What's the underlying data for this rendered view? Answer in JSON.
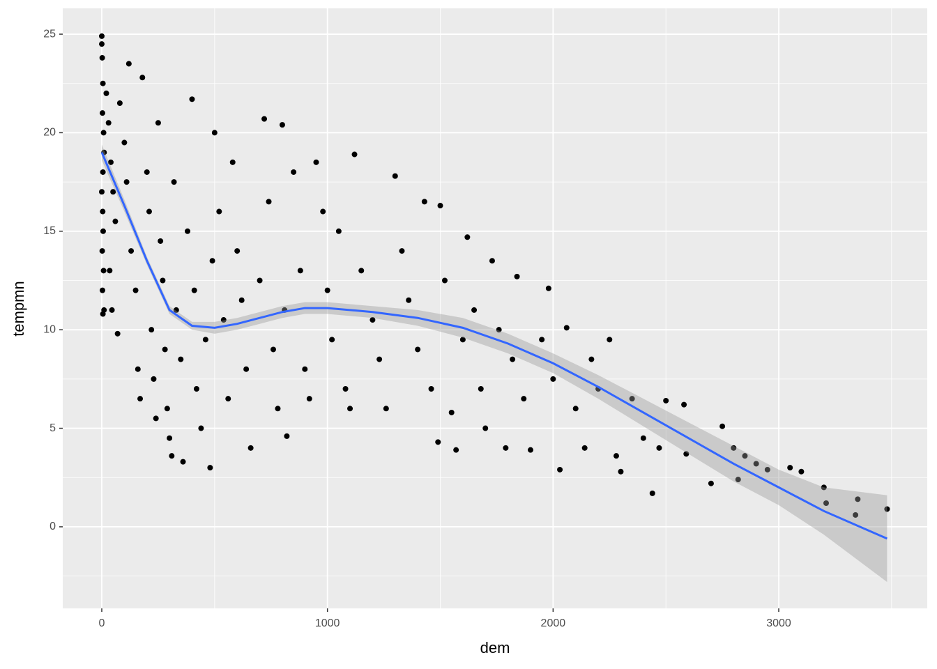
{
  "chart_data": {
    "type": "scatter",
    "x_label": "dem",
    "y_label": "tempmn",
    "xlim": [
      -173,
      3658
    ],
    "ylim": [
      -4.14,
      26.31
    ],
    "xticks": [
      0,
      1000,
      2000,
      3000
    ],
    "yticks": [
      0,
      5,
      10,
      15,
      20,
      25
    ],
    "minor_xticks": [
      500,
      1500,
      2500,
      3500
    ],
    "minor_yticks": [
      -2.5,
      2.5,
      7.5,
      12.5,
      17.5,
      22.5
    ],
    "grid": true,
    "panel_color": "#ebebeb",
    "grid_color": "#ffffff",
    "color": "#000000",
    "x": [
      0,
      0,
      2,
      5,
      3,
      8,
      10,
      5,
      0,
      4,
      6,
      2,
      8,
      3,
      10,
      5,
      20,
      30,
      40,
      50,
      60,
      35,
      45,
      70,
      80,
      100,
      110,
      120,
      130,
      150,
      160,
      170,
      180,
      200,
      210,
      220,
      230,
      240,
      250,
      260,
      270,
      280,
      290,
      300,
      310,
      320,
      330,
      350,
      360,
      380,
      400,
      410,
      420,
      440,
      460,
      480,
      490,
      500,
      520,
      540,
      560,
      580,
      600,
      620,
      640,
      660,
      700,
      720,
      740,
      760,
      780,
      800,
      810,
      820,
      850,
      880,
      900,
      920,
      950,
      980,
      1000,
      1020,
      1050,
      1080,
      1100,
      1120,
      1150,
      1200,
      1230,
      1260,
      1300,
      1330,
      1360,
      1400,
      1430,
      1460,
      1490,
      1500,
      1520,
      1550,
      1570,
      1600,
      1620,
      1650,
      1680,
      1700,
      1730,
      1760,
      1790,
      1820,
      1840,
      1870,
      1900,
      1950,
      1980,
      2000,
      2030,
      2060,
      2100,
      2140,
      2170,
      2200,
      2250,
      2280,
      2300,
      2350,
      2400,
      2440,
      2470,
      2500,
      2580,
      2590,
      2700,
      2750,
      2800,
      2820,
      2850,
      2900,
      2950,
      3050,
      3100,
      3200,
      3210,
      3350,
      3340,
      3480
    ],
    "values": [
      24.9,
      24.5,
      23.8,
      22.5,
      21,
      20,
      19,
      18,
      17,
      16,
      15,
      14,
      13,
      12,
      11,
      10.8,
      22,
      20.5,
      18.5,
      17,
      15.5,
      13,
      11,
      9.8,
      21.5,
      19.5,
      17.5,
      23.5,
      14,
      12,
      8,
      6.5,
      22.8,
      18,
      16,
      10,
      7.5,
      5.5,
      20.5,
      14.5,
      12.5,
      9,
      6,
      4.5,
      3.6,
      17.5,
      11,
      8.5,
      3.3,
      15,
      21.7,
      12,
      7,
      5,
      9.5,
      3,
      13.5,
      20,
      16,
      10.5,
      6.5,
      18.5,
      14,
      11.5,
      8,
      4,
      12.5,
      20.7,
      16.5,
      9,
      6,
      20.4,
      11,
      4.6,
      18,
      13,
      8,
      6.5,
      18.5,
      16,
      12,
      9.5,
      15,
      7,
      6,
      18.9,
      13,
      10.5,
      8.5,
      6,
      17.8,
      14,
      11.5,
      9,
      16.5,
      7,
      4.3,
      16.3,
      12.5,
      5.8,
      3.9,
      9.5,
      14.7,
      11,
      7,
      5,
      13.5,
      10,
      4,
      8.5,
      12.7,
      6.5,
      3.9,
      9.5,
      12.1,
      7.5,
      2.9,
      10.1,
      6,
      4,
      8.5,
      7,
      9.5,
      3.6,
      2.8,
      6.5,
      4.5,
      1.7,
      4,
      6.4,
      6.2,
      3.7,
      2.2,
      5.1,
      4,
      2.4,
      3.6,
      3.2,
      2.9,
      3,
      2.8,
      2,
      1.2,
      1.4,
      0.6,
      0.9
    ],
    "smooth": {
      "color": "#3366ff",
      "band_color": "#999999",
      "x": [
        0,
        100,
        200,
        300,
        400,
        500,
        600,
        700,
        800,
        900,
        1000,
        1200,
        1400,
        1600,
        1800,
        2000,
        2200,
        2400,
        2600,
        2800,
        3000,
        3200,
        3480
      ],
      "y": [
        19,
        16.3,
        13.5,
        11,
        10.2,
        10.1,
        10.3,
        10.6,
        10.9,
        11.1,
        11.1,
        10.9,
        10.6,
        10.1,
        9.3,
        8.3,
        7.1,
        5.8,
        4.5,
        3.2,
        2,
        0.8,
        -0.6
      ],
      "ymin": [
        18.6,
        16,
        13.3,
        10.8,
        10,
        9.8,
        10,
        10.3,
        10.6,
        10.8,
        10.8,
        10.6,
        10.2,
        9.6,
        8.8,
        7.8,
        6.5,
        5.1,
        3.7,
        2.3,
        1.1,
        -0.4,
        -2.8
      ],
      "ymax": [
        19.4,
        16.6,
        13.7,
        11.2,
        10.4,
        10.4,
        10.6,
        10.9,
        11.2,
        11.4,
        11.4,
        11.2,
        11,
        10.6,
        9.8,
        8.8,
        7.7,
        6.5,
        5.3,
        4.1,
        2.9,
        2,
        1.6
      ]
    }
  }
}
